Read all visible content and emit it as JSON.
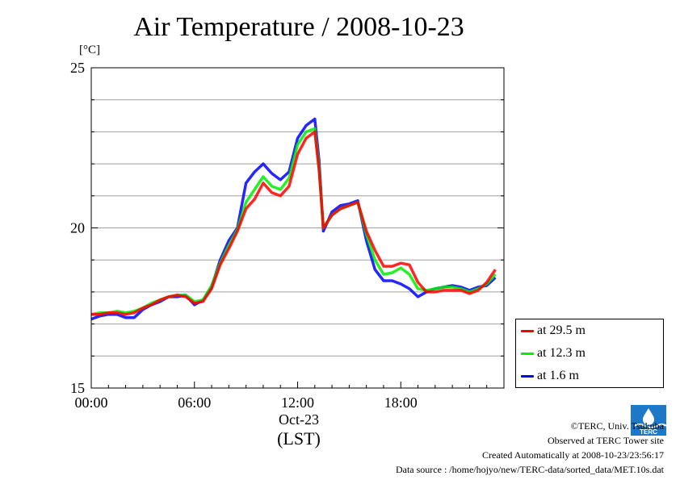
{
  "title": "Air Temperature / 2008-10-23",
  "unit": "[°C]",
  "date_label": "Oct-23",
  "tz_label": "(LST)",
  "legend": [
    {
      "label": "at 29.5 m",
      "color": "#ff0000"
    },
    {
      "label": "at 12.3 m",
      "color": "#00ee00"
    },
    {
      "label": "at 1.6 m",
      "color": "#0000ff"
    }
  ],
  "credits": {
    "copyright": "©TERC, Univ. Tsukuba",
    "observed": "Observed at TERC Tower site",
    "created": "Created Automatically at 2008-10-23/23:56:17",
    "source": "Data source : /home/hojyo/new/TERC-data/sorted_data/MET.10s.dat"
  },
  "logo_text": "TERC",
  "chart_data": {
    "type": "line",
    "title": "Air Temperature / 2008-10-23",
    "ylabel": "[°C]",
    "xlabel": "(LST)",
    "xlim": [
      0,
      24
    ],
    "ylim": [
      15,
      25
    ],
    "x_ticks": [
      "00:00",
      "06:00",
      "12:00",
      "18:00"
    ],
    "y_ticks": [
      "15",
      "20",
      "25"
    ],
    "grid": true,
    "legend_position": "bottom-right outside",
    "x": [
      0,
      0.5,
      1,
      1.5,
      2,
      2.5,
      3,
      3.5,
      4,
      4.5,
      5,
      5.5,
      6,
      6.5,
      7,
      7.5,
      8,
      8.5,
      9,
      9.5,
      10,
      10.5,
      11,
      11.5,
      12,
      12.5,
      13,
      13.25,
      13.5,
      14,
      14.5,
      15,
      15.5,
      16,
      16.5,
      17,
      17.5,
      18,
      18.5,
      19,
      19.5,
      20,
      20.5,
      21,
      21.5,
      22,
      22.5,
      23,
      23.5
    ],
    "series": [
      {
        "name": "at 29.5 m",
        "color": "#ff0000",
        "values": [
          17.3,
          17.3,
          17.35,
          17.35,
          17.3,
          17.35,
          17.5,
          17.6,
          17.75,
          17.85,
          17.9,
          17.85,
          17.65,
          17.7,
          18.1,
          18.85,
          19.35,
          19.9,
          20.6,
          20.9,
          21.4,
          21.1,
          21.0,
          21.3,
          22.3,
          22.8,
          23.0,
          21.8,
          20.0,
          20.4,
          20.6,
          20.7,
          20.8,
          19.9,
          19.3,
          18.8,
          18.8,
          18.9,
          18.85,
          18.3,
          18.0,
          18.0,
          18.05,
          18.05,
          18.05,
          17.95,
          18.05,
          18.3,
          18.7
        ]
      },
      {
        "name": "at 12.3 m",
        "color": "#00ee00",
        "values": [
          17.3,
          17.35,
          17.35,
          17.4,
          17.35,
          17.4,
          17.5,
          17.65,
          17.75,
          17.85,
          17.9,
          17.9,
          17.7,
          17.75,
          18.2,
          18.9,
          19.45,
          19.95,
          20.8,
          21.2,
          21.6,
          21.3,
          21.2,
          21.55,
          22.6,
          23.0,
          23.1,
          21.9,
          20.0,
          20.4,
          20.6,
          20.7,
          20.8,
          19.8,
          19.0,
          18.55,
          18.6,
          18.75,
          18.55,
          18.1,
          18.05,
          18.1,
          18.15,
          18.15,
          18.1,
          18.0,
          18.1,
          18.25,
          18.55
        ]
      },
      {
        "name": "at 1.6 m",
        "color": "#0000ff",
        "values": [
          17.15,
          17.25,
          17.3,
          17.3,
          17.2,
          17.2,
          17.45,
          17.6,
          17.7,
          17.85,
          17.85,
          17.9,
          17.6,
          17.75,
          18.15,
          19.0,
          19.6,
          20.0,
          21.4,
          21.75,
          22.0,
          21.7,
          21.5,
          21.75,
          22.8,
          23.2,
          23.4,
          22.1,
          19.9,
          20.5,
          20.7,
          20.75,
          20.85,
          19.6,
          18.7,
          18.35,
          18.35,
          18.25,
          18.1,
          17.85,
          18.0,
          18.1,
          18.15,
          18.2,
          18.15,
          18.05,
          18.15,
          18.2,
          18.45
        ]
      }
    ]
  }
}
